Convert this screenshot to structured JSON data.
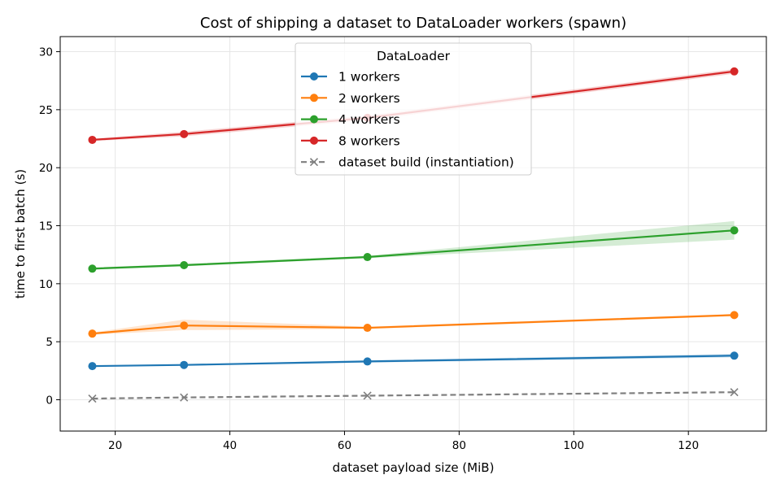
{
  "chart_data": {
    "type": "line",
    "title": "Cost of shipping a dataset to DataLoader workers (spawn)",
    "xlabel": "dataset payload size (MiB)",
    "ylabel": "time to first batch (s)",
    "xlim": [
      10.4,
      133.6
    ],
    "ylim": [
      -2.7,
      31.3
    ],
    "xticks": [
      20,
      40,
      60,
      80,
      100,
      120
    ],
    "yticks": [
      0,
      5,
      10,
      15,
      20,
      25,
      30
    ],
    "grid": true,
    "legend": {
      "title": "DataLoader",
      "placement": "upper-center"
    },
    "x": [
      16,
      32,
      64,
      128
    ],
    "series": [
      {
        "name": "1 workers",
        "color": "#1f77b4",
        "marker": "circle",
        "dash": "solid",
        "values": [
          2.9,
          3.0,
          3.3,
          3.8
        ],
        "band_low": [
          2.85,
          2.95,
          3.2,
          3.65
        ],
        "band_high": [
          2.95,
          3.05,
          3.4,
          3.95
        ]
      },
      {
        "name": "2 workers",
        "color": "#ff7f0e",
        "marker": "circle",
        "dash": "solid",
        "values": [
          5.7,
          6.4,
          6.2,
          7.3
        ],
        "band_low": [
          5.6,
          6.0,
          6.1,
          7.2
        ],
        "band_high": [
          5.8,
          6.9,
          6.3,
          7.4
        ]
      },
      {
        "name": "4 workers",
        "color": "#2ca02c",
        "marker": "circle",
        "dash": "solid",
        "values": [
          11.3,
          11.6,
          12.3,
          14.6
        ],
        "band_low": [
          11.2,
          11.5,
          12.2,
          13.8
        ],
        "band_high": [
          11.4,
          11.7,
          12.4,
          15.4
        ]
      },
      {
        "name": "8 workers",
        "color": "#d62728",
        "marker": "circle",
        "dash": "solid",
        "values": [
          22.4,
          22.9,
          24.3,
          28.3
        ],
        "band_low": [
          22.3,
          22.7,
          24.1,
          28.1
        ],
        "band_high": [
          22.5,
          23.1,
          24.5,
          28.5
        ]
      },
      {
        "name": "dataset build (instantiation)",
        "color": "#7f7f7f",
        "marker": "x",
        "dash": "dashed",
        "values": [
          0.1,
          0.2,
          0.35,
          0.65
        ]
      }
    ]
  }
}
